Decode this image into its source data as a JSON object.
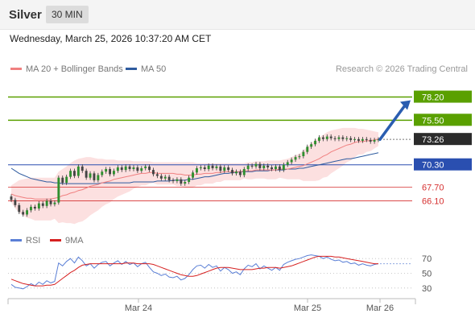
{
  "header": {
    "symbol": "Silver",
    "timeframe": "30 MIN",
    "datetime": "Wednesday, March 25, 2026 10:37:20 AM CET"
  },
  "legend": {
    "bb_label": "MA 20 + Bollinger Bands",
    "bb_color": "#f08080",
    "ma50_label": "MA 50",
    "ma50_color": "#2e5b9f",
    "copyright": "Research © 2026 Trading Central"
  },
  "rsi_legend": {
    "rsi_label": "RSI",
    "rsi_color": "#5a7fd6",
    "ma_label": "9MA",
    "ma_color": "#d62020"
  },
  "chart_data": [
    {
      "type": "candlestick",
      "title": "Silver",
      "x_labels": [
        "Mar 24",
        "Mar 25",
        "Mar 26"
      ],
      "ylim": [
        63.7,
        80.6
      ],
      "levels": [
        {
          "value": 78.2,
          "label": "78.20",
          "kind": "target",
          "color": "#5aa000"
        },
        {
          "value": 75.5,
          "label": "75.50",
          "kind": "target",
          "color": "#5aa000"
        },
        {
          "value": 73.26,
          "label": "73.26",
          "kind": "last",
          "color": "#2b2b2b"
        },
        {
          "value": 70.3,
          "label": "70.30",
          "kind": "pivot",
          "color": "#2a4fb0"
        },
        {
          "value": 67.7,
          "label": "67.70",
          "kind": "support",
          "color": "#d63030"
        },
        {
          "value": 66.1,
          "label": "66.10",
          "kind": "support",
          "color": "#d63030"
        }
      ],
      "close": [
        66.2,
        65.6,
        64.8,
        64.5,
        65.0,
        65.4,
        65.2,
        65.8,
        65.5,
        66.1,
        65.7,
        65.9,
        68.8,
        68.2,
        68.9,
        69.6,
        69.0,
        70.1,
        69.6,
        68.8,
        69.3,
        68.5,
        69.1,
        69.5,
        69.8,
        69.2,
        69.6,
        70.0,
        69.7,
        70.1,
        69.8,
        70.0,
        69.6,
        69.9,
        70.1,
        69.7,
        69.2,
        69.0,
        68.7,
        68.9,
        68.5,
        68.4,
        68.6,
        68.1,
        68.3,
        68.8,
        69.4,
        69.9,
        70.0,
        69.8,
        70.2,
        69.9,
        70.1,
        69.6,
        70.0,
        69.7,
        69.3,
        69.5,
        69.1,
        69.8,
        70.2,
        70.1,
        70.4,
        69.9,
        70.2,
        70.0,
        69.8,
        70.1,
        69.7,
        70.3,
        70.6,
        70.9,
        71.2,
        71.3,
        71.8,
        72.4,
        72.7,
        73.1,
        73.5,
        73.3,
        73.6,
        73.4,
        73.3,
        73.5,
        73.3,
        73.4,
        73.2,
        73.3,
        73.1,
        73.3,
        73.2,
        73.0,
        73.2,
        73.26
      ],
      "ma20": [
        66.9,
        66.7,
        66.6,
        66.5,
        66.4,
        66.4,
        66.3,
        66.3,
        66.3,
        66.3,
        66.3,
        66.4,
        66.5,
        66.7,
        66.8,
        67.0,
        67.1,
        67.3,
        67.4,
        67.6,
        67.8,
        67.9,
        68.0,
        68.2,
        68.3,
        68.4,
        68.6,
        68.7,
        68.8,
        68.9,
        69.0,
        69.1,
        69.2,
        69.3,
        69.3,
        69.4,
        69.4,
        69.3,
        69.3,
        69.3,
        69.3,
        69.3,
        69.2,
        69.2,
        69.1,
        69.1,
        69.1,
        69.2,
        69.2,
        69.3,
        69.3,
        69.3,
        69.4,
        69.4,
        69.5,
        69.5,
        69.5,
        69.5,
        69.5,
        69.6,
        69.6,
        69.6,
        69.7,
        69.7,
        69.7,
        69.7,
        69.7,
        69.7,
        69.8,
        69.8,
        69.8,
        69.9,
        70.0,
        70.1,
        70.2,
        70.4,
        70.6,
        70.8,
        71.0,
        71.3,
        71.5,
        71.8,
        72.0,
        72.2,
        72.4,
        72.6,
        72.7,
        72.9,
        73.0,
        73.0,
        73.1,
        73.1,
        73.2,
        73.3
      ],
      "bb_upper": [
        67.9,
        68.2,
        68.5,
        68.6,
        68.7,
        68.8,
        68.8,
        68.8,
        68.8,
        68.8,
        68.8,
        68.8,
        69.5,
        69.8,
        70.1,
        70.5,
        70.8,
        71.0,
        71.1,
        71.2,
        71.2,
        71.1,
        71.0,
        71.0,
        70.9,
        70.9,
        70.9,
        70.8,
        70.8,
        70.8,
        70.8,
        70.7,
        70.7,
        70.7,
        70.7,
        70.7,
        70.6,
        70.6,
        70.6,
        70.6,
        70.6,
        70.6,
        70.6,
        70.6,
        70.6,
        70.6,
        70.6,
        70.5,
        70.5,
        70.5,
        70.5,
        70.5,
        70.5,
        70.5,
        70.5,
        70.5,
        70.5,
        70.5,
        70.5,
        70.5,
        70.6,
        70.6,
        70.7,
        70.7,
        70.7,
        70.8,
        70.8,
        70.8,
        70.8,
        70.9,
        71.0,
        71.2,
        71.4,
        71.6,
        72.0,
        72.4,
        72.8,
        73.2,
        73.5,
        73.8,
        74.1,
        74.3,
        74.4,
        74.5,
        74.6,
        74.6,
        74.6,
        74.6,
        74.5,
        74.5,
        74.4,
        74.3,
        74.2,
        74.1
      ],
      "bb_lower": [
        65.9,
        65.2,
        64.7,
        64.4,
        64.1,
        64.0,
        63.8,
        63.8,
        63.8,
        63.8,
        63.8,
        64.0,
        63.5,
        63.6,
        63.5,
        63.5,
        63.4,
        63.6,
        63.7,
        64.0,
        64.4,
        64.7,
        65.0,
        65.4,
        65.7,
        65.9,
        66.3,
        66.6,
        66.8,
        67.0,
        67.2,
        67.5,
        67.7,
        67.9,
        67.9,
        68.1,
        68.2,
        68.0,
        68.0,
        68.0,
        68.0,
        68.0,
        67.8,
        67.8,
        67.6,
        67.6,
        67.6,
        67.9,
        67.9,
        68.1,
        68.1,
        68.1,
        68.3,
        68.3,
        68.5,
        68.5,
        68.5,
        68.5,
        68.5,
        68.7,
        68.6,
        68.6,
        68.7,
        68.7,
        68.7,
        68.6,
        68.6,
        68.6,
        68.8,
        68.7,
        68.6,
        68.6,
        68.6,
        68.6,
        68.4,
        68.4,
        68.4,
        68.4,
        68.5,
        68.8,
        68.9,
        69.3,
        69.6,
        69.9,
        70.2,
        70.6,
        70.8,
        71.2,
        71.5,
        71.5,
        71.8,
        71.9,
        72.2,
        72.5
      ],
      "ma50": [
        69.9,
        69.6,
        69.3,
        69.1,
        68.9,
        68.7,
        68.6,
        68.5,
        68.4,
        68.3,
        68.3,
        68.2,
        68.2,
        68.1,
        68.1,
        68.1,
        68.1,
        68.1,
        68.1,
        68.1,
        68.1,
        68.1,
        68.1,
        68.2,
        68.2,
        68.2,
        68.2,
        68.2,
        68.2,
        68.2,
        68.2,
        68.3,
        68.3,
        68.3,
        68.3,
        68.3,
        68.3,
        68.4,
        68.4,
        68.4,
        68.4,
        68.5,
        68.5,
        68.5,
        68.5,
        68.6,
        68.6,
        68.7,
        68.8,
        68.9,
        68.9,
        69.0,
        69.1,
        69.2,
        69.3,
        69.3,
        69.4,
        69.4,
        69.5,
        69.5,
        69.5,
        69.5,
        69.6,
        69.6,
        69.6,
        69.6,
        69.7,
        69.7,
        69.7,
        69.7,
        69.8,
        69.8,
        69.8,
        69.9,
        69.9,
        70.0,
        70.1,
        70.2,
        70.3,
        70.4,
        70.5,
        70.6,
        70.7,
        70.8,
        70.9,
        71.0,
        71.0,
        71.1,
        71.2,
        71.3,
        71.4,
        71.5,
        71.6,
        71.7
      ],
      "forecast_arrow": {
        "from": 73.26,
        "to": 78.2
      }
    },
    {
      "type": "line",
      "title": "RSI",
      "ylim": [
        20,
        80
      ],
      "yticks": [
        30,
        50,
        70
      ],
      "series": [
        {
          "name": "RSI",
          "color": "#5a7fd6",
          "values": [
            35,
            31,
            30,
            29,
            32,
            36,
            33,
            38,
            35,
            40,
            37,
            39,
            64,
            60,
            66,
            70,
            64,
            72,
            67,
            60,
            63,
            57,
            62,
            65,
            66,
            60,
            64,
            67,
            62,
            66,
            62,
            64,
            59,
            63,
            65,
            58,
            52,
            50,
            47,
            49,
            45,
            44,
            46,
            41,
            43,
            48,
            55,
            60,
            61,
            57,
            62,
            58,
            60,
            53,
            58,
            55,
            50,
            52,
            48,
            56,
            61,
            59,
            63,
            56,
            60,
            57,
            54,
            58,
            54,
            62,
            65,
            67,
            69,
            70,
            72,
            74,
            75,
            74,
            73,
            70,
            72,
            69,
            67,
            68,
            65,
            66,
            63,
            64,
            61,
            63,
            61,
            60,
            62,
            63
          ]
        },
        {
          "name": "9MA",
          "color": "#d62020",
          "values": [
            42,
            40,
            38,
            36,
            35,
            34,
            33,
            33,
            33,
            34,
            34,
            35,
            39,
            43,
            47,
            51,
            54,
            58,
            61,
            62,
            63,
            63,
            63,
            63,
            63,
            63,
            63,
            63,
            63,
            64,
            64,
            64,
            63,
            63,
            63,
            63,
            62,
            60,
            58,
            56,
            54,
            52,
            50,
            48,
            47,
            46,
            46,
            47,
            49,
            51,
            53,
            55,
            57,
            58,
            58,
            58,
            57,
            56,
            55,
            55,
            55,
            55,
            56,
            57,
            57,
            58,
            58,
            58,
            57,
            58,
            59,
            60,
            62,
            64,
            66,
            68,
            70,
            72,
            73,
            73,
            73,
            73,
            72,
            72,
            71,
            70,
            69,
            68,
            67,
            66,
            65,
            64,
            63,
            63
          ]
        }
      ]
    }
  ]
}
